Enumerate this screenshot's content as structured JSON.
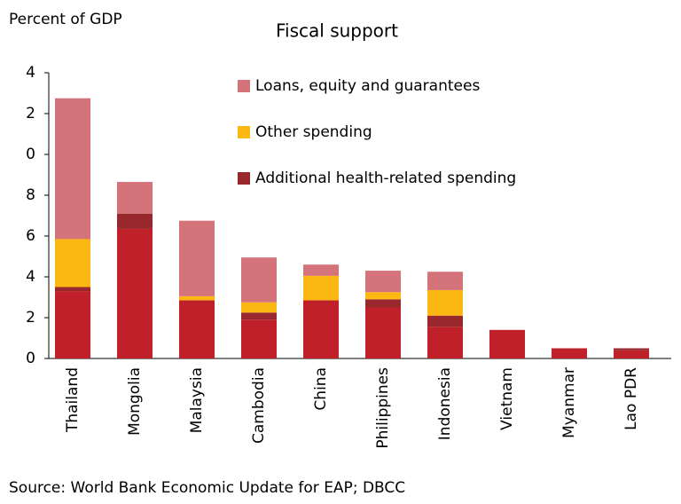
{
  "chart_data": {
    "type": "stacked_bar",
    "title": "Fiscal support",
    "y_label": "Percent of GDP",
    "source": "Source: World Bank Economic Update for EAP; DBCC",
    "categories": [
      "Thailand",
      "Mongolia",
      "Malaysia",
      "Cambodia",
      "China",
      "Philippines",
      "Indonesia",
      "Vietnam",
      "Myanmar",
      "Lao PDR"
    ],
    "series": [
      {
        "name": null,
        "color": "#c0202a",
        "values": [
          3.3,
          6.35,
          2.85,
          1.9,
          2.85,
          2.5,
          1.55,
          1.4,
          0.5,
          0.4
        ]
      },
      {
        "name": "Additional health-related spending",
        "color": "#98282e",
        "values": [
          0.2,
          0.75,
          0,
          0.35,
          0,
          0.4,
          0.55,
          0,
          0,
          0.1
        ]
      },
      {
        "name": "Other spending",
        "color": "#fbb812",
        "values": [
          2.35,
          0,
          0.2,
          0.5,
          1.2,
          0.35,
          1.25,
          0,
          0,
          0
        ]
      },
      {
        "name": "Loans, equity and guarantees",
        "color": "#d4737a",
        "values": [
          6.9,
          1.55,
          3.7,
          2.2,
          0.55,
          1.05,
          0.9,
          0,
          0,
          0
        ]
      }
    ],
    "ylim": [
      0,
      14
    ],
    "yticks": [
      0,
      2,
      4,
      6,
      8,
      {
        "value": 10,
        "label": "0"
      },
      {
        "value": 12,
        "label": "2"
      },
      {
        "value": 14,
        "label": "4"
      }
    ],
    "grid": false
  }
}
